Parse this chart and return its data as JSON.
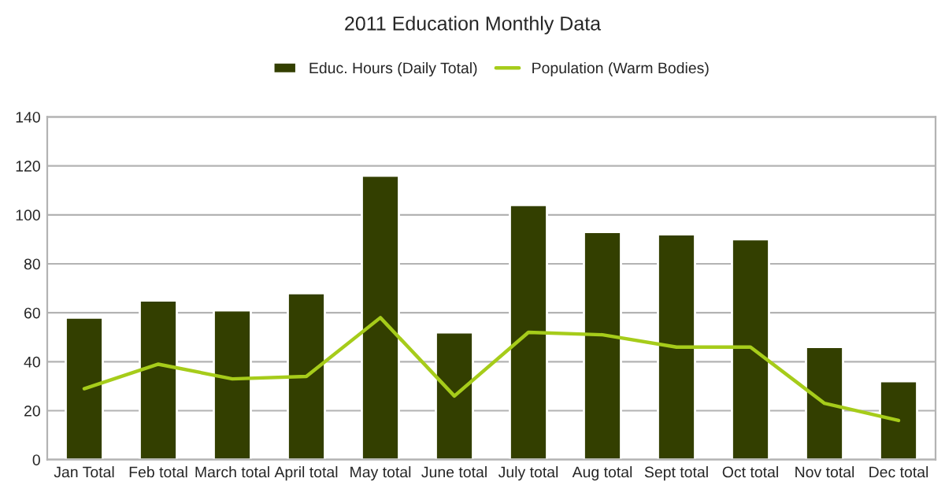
{
  "chart_data": {
    "type": "bar",
    "title": "2011 Education Monthly Data",
    "categories": [
      "Jan Total",
      "Feb total",
      "March total",
      "April total",
      "May total",
      "June total",
      "July total",
      "Aug total",
      "Sept total",
      "Oct total",
      "Nov total",
      "Dec total"
    ],
    "series": [
      {
        "name": "Educ. Hours (Daily Total)",
        "color": "#333f00",
        "values": [
          58,
          65,
          61,
          68,
          116,
          52,
          104,
          93,
          92,
          90,
          46,
          32
        ]
      },
      {
        "name": "Population (Warm Bodies)",
        "type": "line",
        "color": "#a6cc1a",
        "values": [
          29,
          39,
          33,
          34,
          58,
          26,
          52,
          51,
          46,
          46,
          23,
          16
        ]
      }
    ],
    "ylim": [
      0,
      140
    ],
    "yticks": [
      0,
      20,
      40,
      60,
      80,
      100,
      120,
      140
    ],
    "grid": "y",
    "legend": "top",
    "marker": "none",
    "line_style": "solid"
  }
}
